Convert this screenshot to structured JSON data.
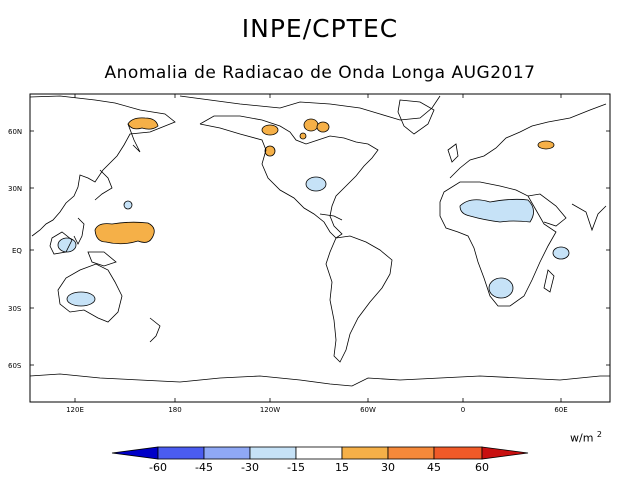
{
  "header": {
    "title": "INPE/CPTEC",
    "subtitle": "Anomalia de Radiacao de Onda Longa AUG2017"
  },
  "map": {
    "lat_ticks": [
      "60N",
      "30N",
      "EQ",
      "30S",
      "60S"
    ],
    "lon_ticks": [
      "120E",
      "180",
      "120W",
      "60W",
      "0",
      "60E"
    ],
    "colors": {
      "land_outline": "#000000",
      "negative_anomaly": "#c6e2f7",
      "positive_anomaly": "#f5b048"
    }
  },
  "legend": {
    "units": "w/m",
    "units_exp": "2",
    "labels": [
      "-60",
      "-45",
      "-30",
      "-15",
      "15",
      "30",
      "45",
      "60"
    ],
    "colors": [
      "#0000c8",
      "#4a5cf0",
      "#8fa8f5",
      "#c6e2f7",
      "#ffffff",
      "#f5b048",
      "#f5893a",
      "#f05a28",
      "#c81010"
    ]
  }
}
